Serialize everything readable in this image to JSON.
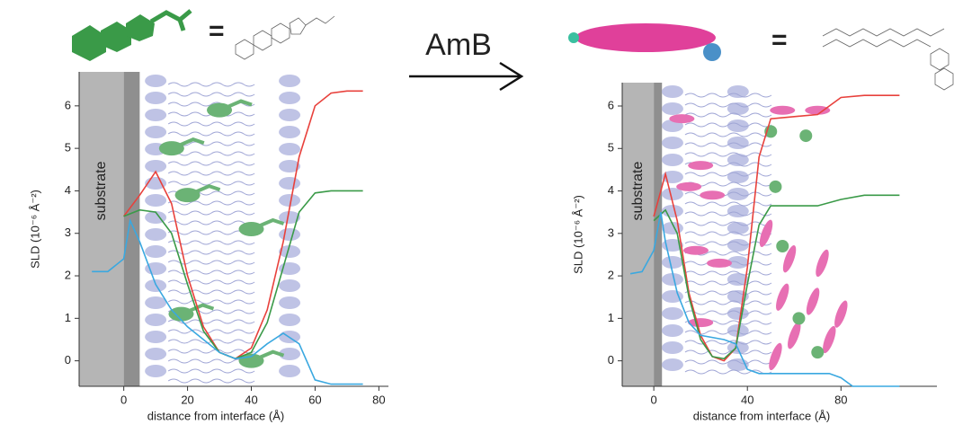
{
  "header": {
    "arrow_label": "AmB",
    "equals": [
      "=",
      "="
    ]
  },
  "chart_data": [
    {
      "type": "line",
      "annotation": "substrate",
      "x_label": "distance from interface (Å)",
      "y_label": "SLD (10⁻⁶ Å⁻²)",
      "xlim": [
        -14,
        83
      ],
      "ylim": [
        -0.6,
        6.8
      ],
      "xticks": [
        0,
        20,
        40,
        60,
        80
      ],
      "yticks": [
        0,
        1,
        2,
        3,
        4,
        5,
        6
      ],
      "series": [
        {
          "color": "#e8413c",
          "x": [
            0,
            5,
            10,
            15,
            20,
            25,
            30,
            35,
            40,
            45,
            50,
            55,
            60,
            65,
            70,
            75
          ],
          "values": [
            3.4,
            3.9,
            4.45,
            3.7,
            2.0,
            0.8,
            0.2,
            0.05,
            0.3,
            1.2,
            2.8,
            4.8,
            6.0,
            6.3,
            6.35,
            6.35
          ]
        },
        {
          "color": "#3a9a48",
          "x": [
            0,
            5,
            10,
            15,
            20,
            25,
            30,
            35,
            40,
            45,
            50,
            55,
            60,
            65,
            70,
            75
          ],
          "values": [
            3.4,
            3.55,
            3.5,
            3.0,
            1.8,
            0.7,
            0.2,
            0.05,
            0.2,
            0.9,
            2.2,
            3.5,
            3.95,
            4.0,
            4.0,
            4.0
          ]
        },
        {
          "color": "#3aa8e0",
          "x": [
            -10,
            -5,
            0,
            2,
            5,
            10,
            15,
            20,
            25,
            30,
            35,
            40,
            45,
            50,
            55,
            60,
            65,
            75
          ],
          "values": [
            2.1,
            2.1,
            2.4,
            3.3,
            2.8,
            1.8,
            1.2,
            0.8,
            0.5,
            0.2,
            0.05,
            0.1,
            0.4,
            0.65,
            0.4,
            -0.45,
            -0.55,
            -0.55
          ]
        }
      ]
    },
    {
      "type": "line",
      "annotation": "substrate",
      "x_label": "distance from interface (Å)",
      "y_label": "SLD (10⁻⁶ Å⁻²)",
      "xlim": [
        -13.5,
        121
      ],
      "ylim": [
        -0.6,
        6.55
      ],
      "xticks": [
        0,
        40,
        80
      ],
      "yticks": [
        0,
        1,
        2,
        3,
        4,
        5,
        6
      ],
      "series": [
        {
          "color": "#e8413c",
          "x": [
            0,
            5,
            10,
            15,
            20,
            25,
            30,
            35,
            40,
            45,
            50,
            60,
            70,
            80,
            90,
            105
          ],
          "values": [
            3.4,
            4.4,
            3.3,
            1.6,
            0.6,
            0.1,
            0.0,
            0.3,
            2.2,
            4.8,
            5.7,
            5.75,
            5.8,
            6.2,
            6.25,
            6.25
          ]
        },
        {
          "color": "#3a9a48",
          "x": [
            0,
            5,
            10,
            15,
            20,
            25,
            30,
            35,
            40,
            45,
            50,
            60,
            70,
            80,
            90,
            105
          ],
          "values": [
            3.3,
            3.55,
            3.0,
            1.5,
            0.5,
            0.1,
            0.05,
            0.3,
            1.8,
            3.2,
            3.65,
            3.65,
            3.65,
            3.8,
            3.9,
            3.9
          ]
        },
        {
          "color": "#3aa8e0",
          "x": [
            -10,
            -5,
            0,
            3,
            5,
            10,
            15,
            20,
            30,
            35,
            40,
            45,
            60,
            75,
            80,
            85,
            105
          ],
          "values": [
            2.05,
            2.1,
            2.6,
            3.5,
            2.8,
            1.6,
            0.9,
            0.6,
            0.5,
            0.4,
            -0.2,
            -0.3,
            -0.3,
            -0.3,
            -0.4,
            -0.6,
            -0.6
          ]
        }
      ]
    }
  ]
}
